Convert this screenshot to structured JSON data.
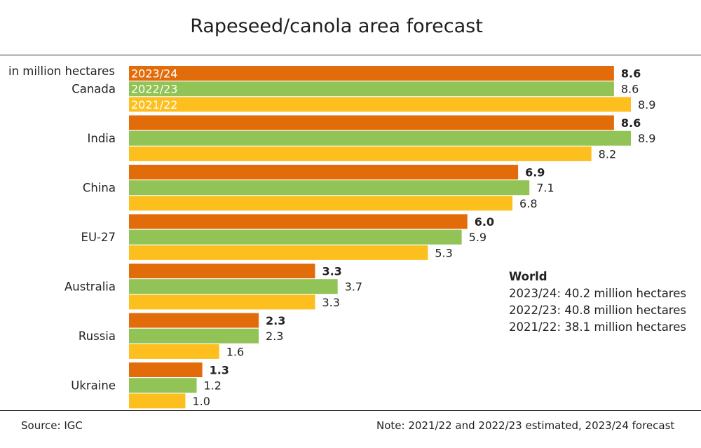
{
  "colors": {
    "2023/24": "#e36c0a",
    "2022/23": "#92c356",
    "2021/22": "#fcbf1e"
  },
  "chart_data": {
    "type": "bar",
    "orientation": "horizontal",
    "title": "Rapeseed/canola area forecast",
    "unit_label": "in million hectares",
    "categories": [
      "Canada",
      "India",
      "China",
      "EU-27",
      "Australia",
      "Russia",
      "Ukraine"
    ],
    "series": [
      {
        "name": "2023/24",
        "values": [
          8.6,
          8.6,
          6.9,
          6.0,
          3.3,
          2.3,
          1.3
        ],
        "labels": [
          "8.6",
          "8.6",
          "6.9",
          "6.0",
          "3.3",
          "2.3",
          "1.3"
        ]
      },
      {
        "name": "2022/23",
        "values": [
          8.6,
          8.9,
          7.1,
          5.9,
          3.7,
          2.3,
          1.2
        ],
        "labels": [
          "8.6",
          "8.9",
          "7.1",
          "5.9",
          "3.7",
          "2.3",
          "1.2"
        ]
      },
      {
        "name": "2021/22",
        "values": [
          8.9,
          8.2,
          6.8,
          5.3,
          3.3,
          1.6,
          1.0
        ],
        "labels": [
          "8.9",
          "8.2",
          "6.8",
          "5.3",
          "3.3",
          "1.6",
          "1.0"
        ]
      }
    ],
    "xlim": [
      0,
      8.9
    ],
    "grid": false,
    "legend": "series names inside first group of bars"
  },
  "world": {
    "heading": "World",
    "lines": [
      "2023/24: 40.2 million hectares",
      "2022/23: 40.8 million hectares",
      "2021/22: 38.1 million hectares"
    ]
  },
  "footer": {
    "source": "Source: IGC",
    "note": "Note: 2021/22 and 2022/23 estimated, 2023/24 forecast"
  }
}
